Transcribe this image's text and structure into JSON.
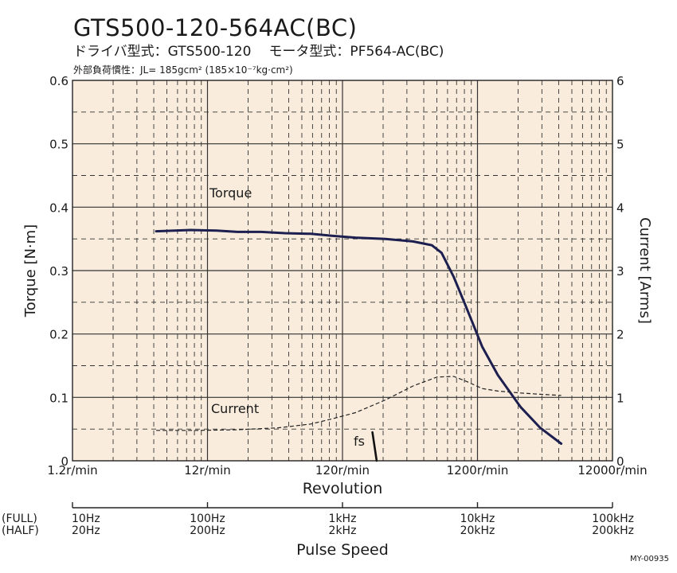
{
  "header": {
    "title": "GTS500-120-564AC(BC)",
    "driver_model": "ドライバ型式：GTS500-120",
    "motor_model": "モータ型式：PF564-AC(BC)",
    "load_inertia": "外部負荷慣性：JL= 185gcm² (185×10⁻⁷kg·cm²)"
  },
  "doc_id": "MY-00935",
  "colors": {
    "torque_line": "#1c1f4f",
    "current_line": "#222222",
    "plot_bg": "#f9ecdc",
    "grid": "#333333"
  },
  "chart_data": {
    "type": "line",
    "x_scale": "log",
    "xlabel": "Revolution",
    "xlim": [
      1.2,
      12000
    ],
    "x_ticks": [
      1.2,
      12,
      120,
      1200,
      12000
    ],
    "x_tick_labels": [
      "1.2r/min",
      "12r/min",
      "120r/min",
      "1200r/min",
      "12000r/min"
    ],
    "ylabel": "Torque [N·m]",
    "ylim": [
      0,
      0.6
    ],
    "y_ticks": [
      0,
      0.1,
      0.2,
      0.3,
      0.4,
      0.5,
      0.6
    ],
    "y_tick_labels": [
      "0",
      "0.1",
      "0.2",
      "0.3",
      "0.4",
      "0.5",
      "0.6"
    ],
    "y2label": "Current [Arms]",
    "y2lim": [
      0,
      6
    ],
    "y2_ticks": [
      0,
      1,
      2,
      3,
      4,
      5,
      6
    ],
    "y2_tick_labels": [
      "0",
      "1",
      "2",
      "3",
      "4",
      "5",
      "6"
    ],
    "grid": true,
    "series": [
      {
        "name": "Torque",
        "axis": "left",
        "style": "solid",
        "x": [
          5,
          9,
          14,
          20,
          30,
          45,
          70,
          100,
          150,
          250,
          400,
          550,
          650,
          800,
          1000,
          1300,
          1700,
          2500,
          3500,
          5000
        ],
        "y": [
          0.362,
          0.364,
          0.363,
          0.361,
          0.361,
          0.359,
          0.358,
          0.355,
          0.352,
          0.35,
          0.346,
          0.34,
          0.328,
          0.29,
          0.24,
          0.18,
          0.135,
          0.085,
          0.052,
          0.027
        ]
      },
      {
        "name": "Current",
        "axis": "right",
        "style": "dashed",
        "x": [
          5,
          10,
          20,
          40,
          70,
          100,
          150,
          250,
          400,
          600,
          800,
          1000,
          1300,
          1700,
          2500,
          3500,
          5000
        ],
        "y": [
          0.48,
          0.48,
          0.49,
          0.52,
          0.58,
          0.66,
          0.76,
          0.96,
          1.18,
          1.32,
          1.33,
          1.25,
          1.14,
          1.1,
          1.07,
          1.05,
          1.03
        ]
      }
    ],
    "fs": {
      "label": "fs",
      "x": [
        200,
        215
      ],
      "y": [
        0.045,
        0
      ]
    },
    "pulse_speed": {
      "xlabel": "Pulse Speed",
      "rows": [
        {
          "label": "(FULL)",
          "ticks": [
            "10Hz",
            "100Hz",
            "1kHz",
            "10kHz",
            "100kHz"
          ]
        },
        {
          "label": "(HALF)",
          "ticks": [
            "20Hz",
            "200Hz",
            "2kHz",
            "20kHz",
            "200kHz"
          ]
        }
      ]
    },
    "annotations": [
      "Torque",
      "Current",
      "fs"
    ]
  }
}
